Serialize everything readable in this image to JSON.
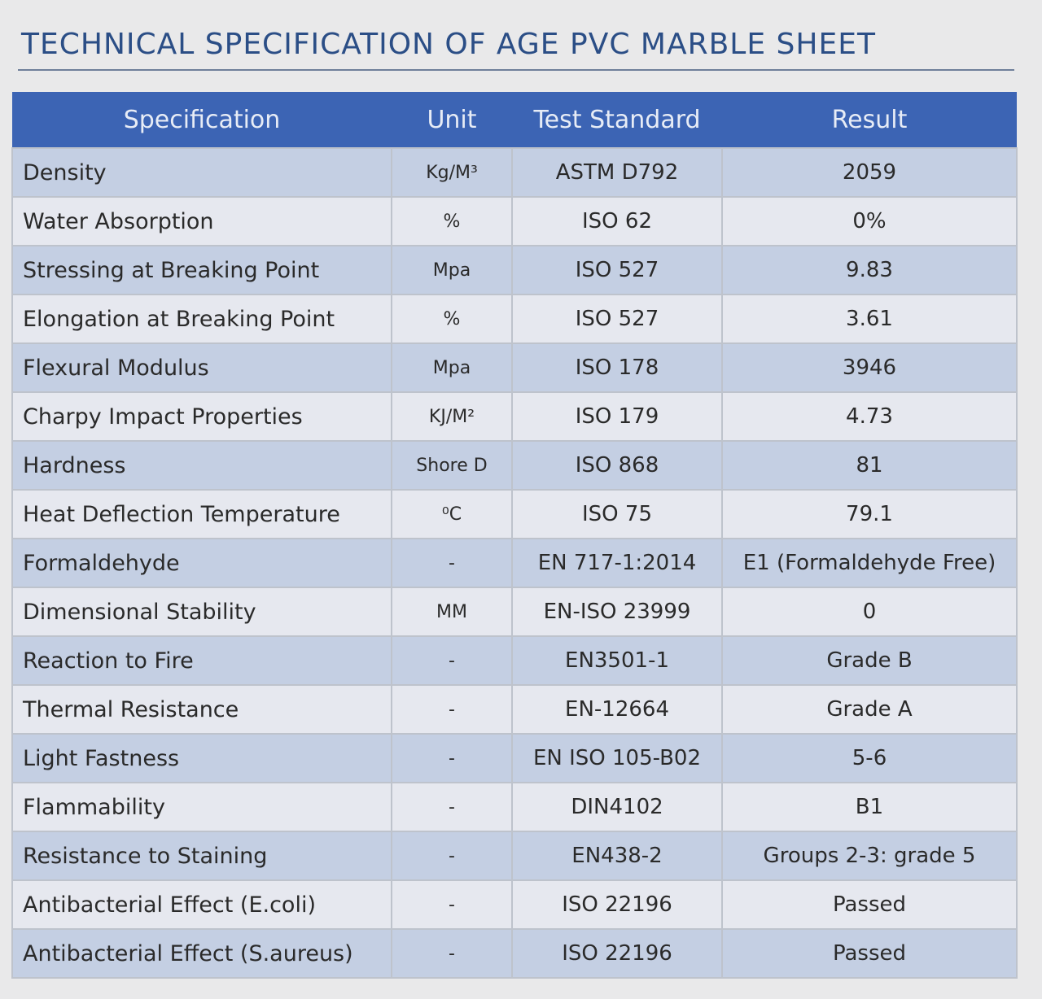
{
  "title": "TECHNICAL SPECIFICATION OF  AGE   PVC   MARBLE  SHEET",
  "table": {
    "headers": [
      "Specification",
      "Unit",
      "Test Standard",
      "Result"
    ],
    "rows": [
      {
        "specification": "Density",
        "unit": "Kg/M³",
        "standard": "ASTM D792",
        "result": "2059"
      },
      {
        "specification": "Water Absorption",
        "unit": "%",
        "standard": "ISO 62",
        "result": "0%"
      },
      {
        "specification": "Stressing at Breaking Point",
        "unit": "Mpa",
        "standard": "ISO 527",
        "result": "9.83"
      },
      {
        "specification": "Elongation at Breaking Point",
        "unit": "%",
        "standard": "ISO 527",
        "result": "3.61"
      },
      {
        "specification": "Flexural Modulus",
        "unit": "Mpa",
        "standard": "ISO 178",
        "result": "3946"
      },
      {
        "specification": "Charpy Impact Properties",
        "unit": "KJ/M²",
        "standard": "ISO 179",
        "result": "4.73"
      },
      {
        "specification": "Hardness",
        "unit": "Shore D",
        "standard": "ISO 868",
        "result": "81"
      },
      {
        "specification": "Heat Deflection Temperature",
        "unit": "⁰C",
        "standard": "ISO 75",
        "result": "79.1"
      },
      {
        "specification": "Formaldehyde",
        "unit": "-",
        "standard": "EN 717-1:2014",
        "result": "E1 (Formaldehyde Free)"
      },
      {
        "specification": "Dimensional Stability",
        "unit": "MM",
        "standard": "EN-ISO 23999",
        "result": "0"
      },
      {
        "specification": "Reaction to Fire",
        "unit": "-",
        "standard": "EN3501-1",
        "result": "Grade B"
      },
      {
        "specification": "Thermal Resistance",
        "unit": "-",
        "standard": "EN-12664",
        "result": "Grade A"
      },
      {
        "specification": "Light Fastness",
        "unit": "-",
        "standard": "EN ISO 105-B02",
        "result": "5-6"
      },
      {
        "specification": "Flammability",
        "unit": "-",
        "standard": "DIN4102",
        "result": "B1"
      },
      {
        "specification": "Resistance to Staining",
        "unit": "-",
        "standard": "EN438-2",
        "result": "Groups 2-3: grade 5"
      },
      {
        "specification": "Antibacterial Effect (E.coli)",
        "unit": "-",
        "standard": "ISO 22196",
        "result": "Passed"
      },
      {
        "specification": "Antibacterial Effect (S.aureus)",
        "unit": "-",
        "standard": "ISO 22196",
        "result": "Passed"
      }
    ]
  },
  "colors": {
    "title": "#2b4e86",
    "header_bg": "#3c64b4",
    "header_text": "#e7ecf6",
    "row_odd": "#c4cfe3",
    "row_even": "#e6e8ef",
    "grid": "#bec3cc",
    "page_bg": "#e9e9ea"
  }
}
